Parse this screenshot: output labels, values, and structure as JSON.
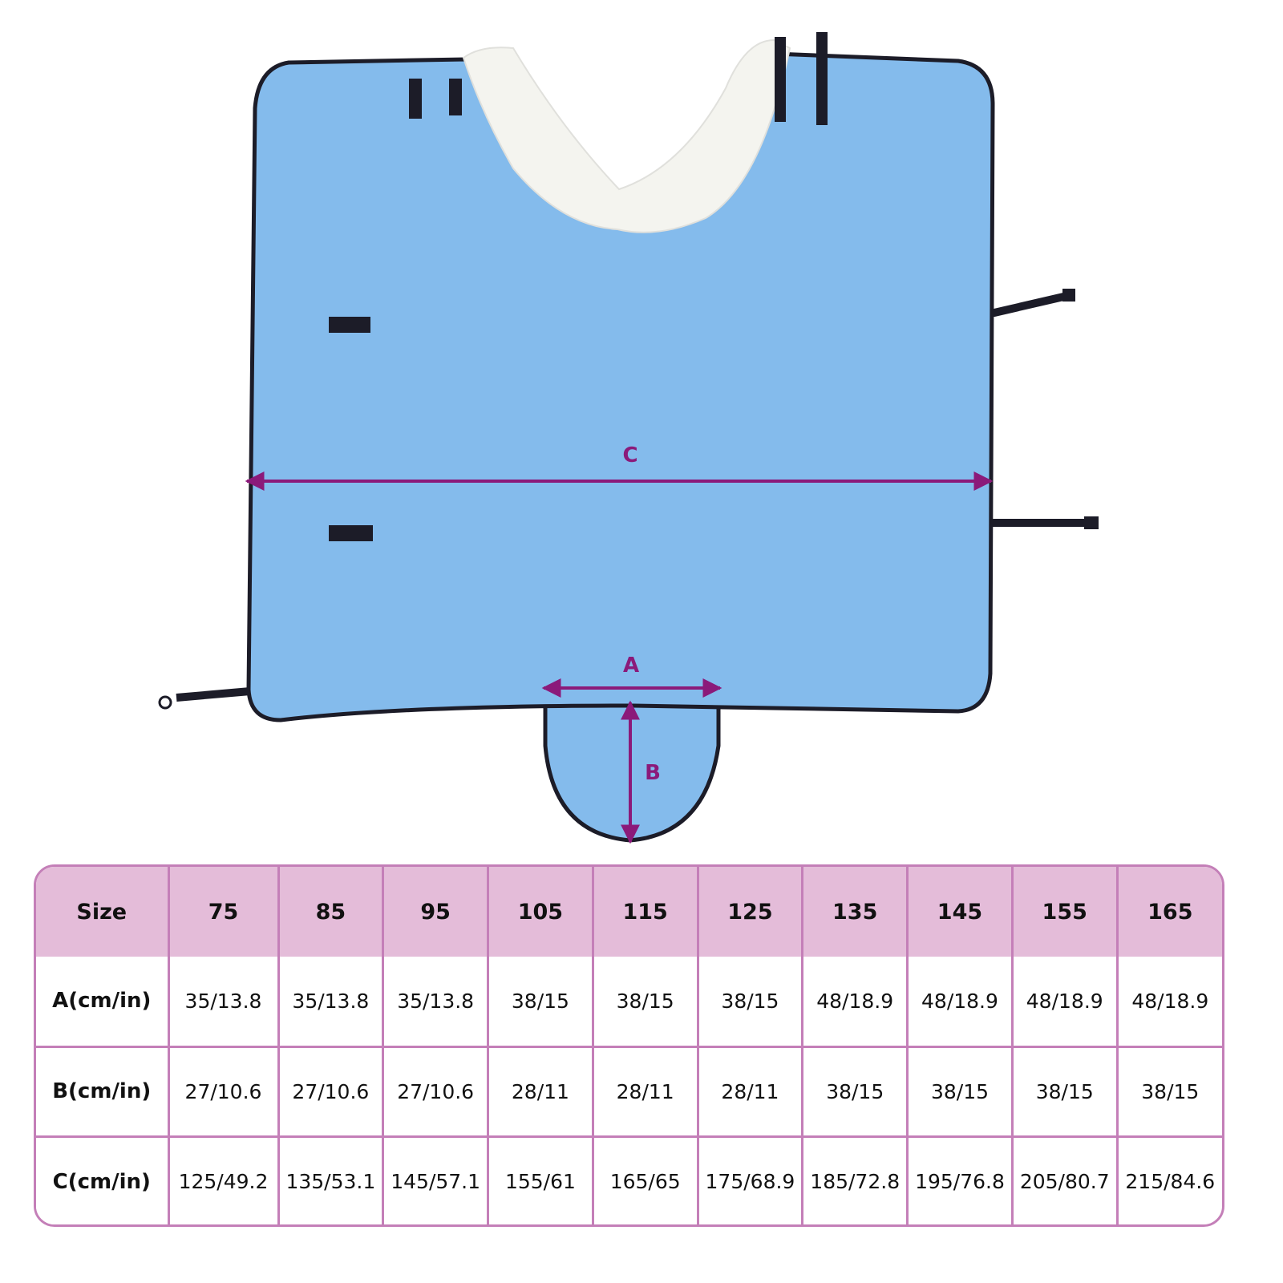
{
  "illustration": {
    "labels": {
      "a": "A",
      "b": "B",
      "c": "C"
    },
    "colors": {
      "fabric": "#84bbec",
      "collar": "#f4f4ef",
      "trim": "#1c1c28",
      "measure": "#8b1a7a"
    }
  },
  "table": {
    "header": [
      "Size",
      "75",
      "85",
      "95",
      "105",
      "115",
      "125",
      "135",
      "145",
      "155",
      "165"
    ],
    "rows": [
      {
        "label": "A(cm/in)",
        "values": [
          "35/13.8",
          "35/13.8",
          "35/13.8",
          "38/15",
          "38/15",
          "38/15",
          "48/18.9",
          "48/18.9",
          "48/18.9",
          "48/18.9"
        ]
      },
      {
        "label": "B(cm/in)",
        "values": [
          "27/10.6",
          "27/10.6",
          "27/10.6",
          "28/11",
          "28/11",
          "28/11",
          "38/15",
          "38/15",
          "38/15",
          "38/15"
        ]
      },
      {
        "label": "C(cm/in)",
        "values": [
          "125/49.2",
          "135/53.1",
          "145/57.1",
          "155/61",
          "165/65",
          "175/68.9",
          "185/72.8",
          "195/76.8",
          "205/80.7",
          "215/84.6"
        ]
      }
    ],
    "colors": {
      "header_bg": "#e4bcd9",
      "border": "#c47fb8"
    }
  }
}
